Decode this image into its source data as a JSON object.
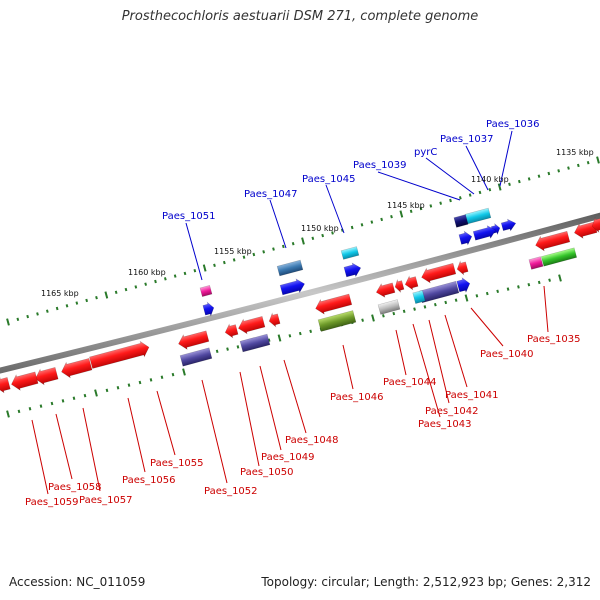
{
  "title": "Prosthecochloris aestuarii DSM 271, complete genome",
  "footer": {
    "accession": "Accession: NC_011059",
    "topology": "Topology: circular; Length: 2,512,923 bp; Genes: 2,312"
  },
  "scale_labels": [
    "1135 kbp",
    "1140 kbp",
    "1145 kbp",
    "1150 kbp",
    "1155 kbp",
    "1160 kbp",
    "1165 kbp"
  ],
  "gene_labels_top": [
    "Paes_1036",
    "Paes_1037",
    "pyrC",
    "Paes_1039",
    "Paes_1045",
    "Paes_1047",
    "Paes_1051"
  ],
  "gene_labels_bottom": [
    "Paes_1035",
    "Paes_1040",
    "Paes_1041",
    "Paes_1042",
    "Paes_1043",
    "Paes_1044",
    "Paes_1046",
    "Paes_1048",
    "Paes_1049",
    "Paes_1050",
    "Paes_1052",
    "Paes_1055",
    "Paes_1056",
    "Paes_1057",
    "Paes_1058",
    "Paes_1059"
  ],
  "colors": {
    "top_label": "#0000cc",
    "bottom_label": "#cc0000",
    "tick": "#2a7a2a",
    "backbone": "#8a8a8a",
    "gene_red": "#ee1111",
    "gene_blue": "#1111ee"
  }
}
